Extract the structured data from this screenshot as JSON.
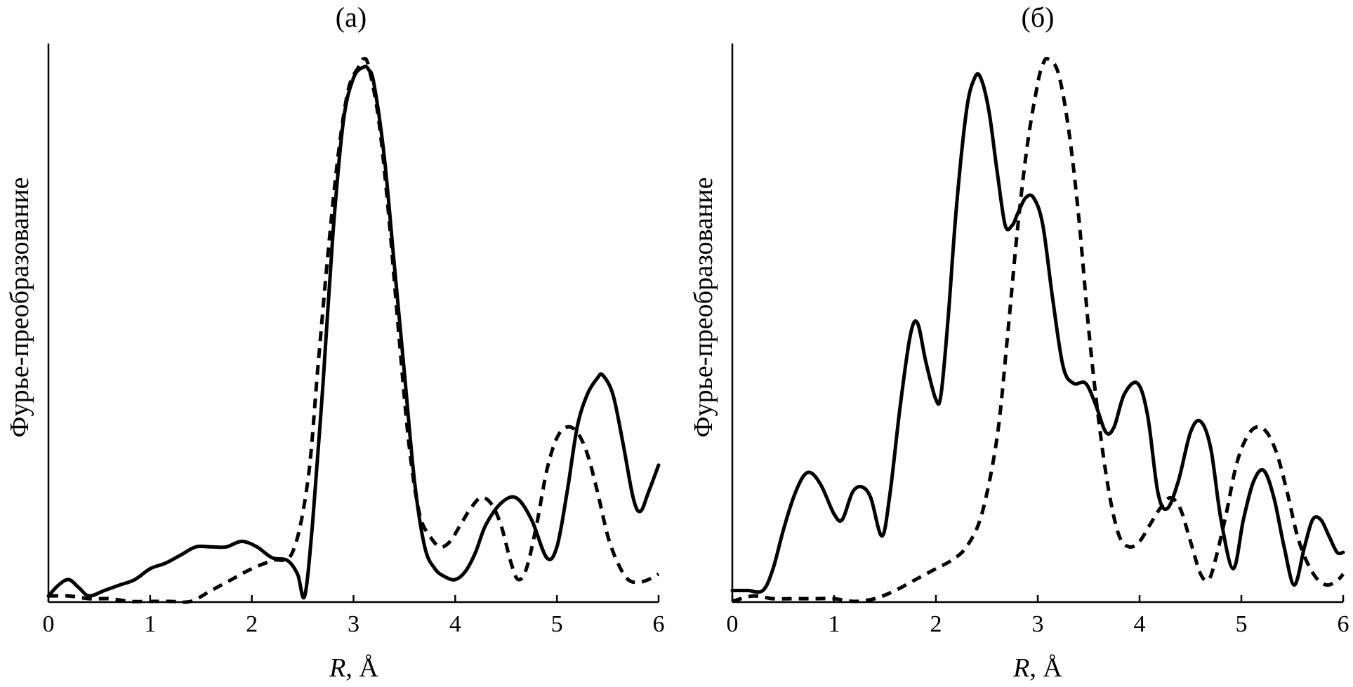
{
  "chart_data": [
    {
      "type": "line",
      "title": "(a)",
      "xlabel_italic": "R",
      "xlabel_rest": ", Å",
      "ylabel": "Фурье-преобразование",
      "xlim": [
        0,
        6
      ],
      "ylim": [
        0,
        1
      ],
      "xticks": [
        "0",
        "1",
        "2",
        "3",
        "4",
        "5",
        "6"
      ],
      "grid": false,
      "series": [
        {
          "style": "solid",
          "x": [
            0,
            0.1,
            0.2,
            0.3,
            0.4,
            0.55,
            0.7,
            0.85,
            1.0,
            1.15,
            1.3,
            1.45,
            1.6,
            1.75,
            1.9,
            2.05,
            2.2,
            2.35,
            2.45,
            2.52,
            2.6,
            2.7,
            2.8,
            2.9,
            3.0,
            3.1,
            3.15,
            3.2,
            3.3,
            3.4,
            3.5,
            3.6,
            3.7,
            3.8,
            3.9,
            4.0,
            4.1,
            4.2,
            4.3,
            4.45,
            4.6,
            4.75,
            4.9,
            5.0,
            5.1,
            5.2,
            5.3,
            5.4,
            5.45,
            5.55,
            5.65,
            5.75,
            5.82,
            5.9,
            6.0
          ],
          "y": [
            0.01,
            0.03,
            0.04,
            0.025,
            0.01,
            0.02,
            0.03,
            0.04,
            0.06,
            0.07,
            0.085,
            0.1,
            0.1,
            0.1,
            0.11,
            0.1,
            0.08,
            0.075,
            0.05,
            0.01,
            0.15,
            0.4,
            0.68,
            0.88,
            0.96,
            0.98,
            0.975,
            0.95,
            0.82,
            0.62,
            0.42,
            0.22,
            0.1,
            0.06,
            0.045,
            0.04,
            0.055,
            0.09,
            0.14,
            0.18,
            0.19,
            0.15,
            0.08,
            0.1,
            0.2,
            0.32,
            0.38,
            0.41,
            0.415,
            0.38,
            0.29,
            0.19,
            0.165,
            0.2,
            0.25
          ]
        },
        {
          "style": "dashed",
          "x": [
            0,
            0.2,
            0.4,
            0.6,
            0.8,
            1.0,
            1.2,
            1.4,
            1.6,
            1.8,
            2.0,
            2.2,
            2.4,
            2.55,
            2.65,
            2.75,
            2.85,
            2.95,
            3.05,
            3.1,
            3.15,
            3.25,
            3.35,
            3.45,
            3.55,
            3.65,
            3.75,
            3.85,
            3.95,
            4.05,
            4.15,
            4.25,
            4.35,
            4.45,
            4.55,
            4.62,
            4.7,
            4.8,
            4.9,
            5.0,
            5.1,
            5.2,
            5.3,
            5.4,
            5.5,
            5.6,
            5.7,
            5.8,
            5.9,
            6.0
          ],
          "y": [
            0.01,
            0.01,
            0.005,
            0.005,
            0.0,
            0.0,
            0.0,
            0.0,
            0.02,
            0.04,
            0.06,
            0.075,
            0.09,
            0.22,
            0.43,
            0.64,
            0.82,
            0.94,
            0.98,
            0.995,
            0.98,
            0.88,
            0.7,
            0.48,
            0.28,
            0.16,
            0.12,
            0.1,
            0.11,
            0.14,
            0.17,
            0.19,
            0.18,
            0.14,
            0.07,
            0.04,
            0.06,
            0.14,
            0.24,
            0.3,
            0.32,
            0.31,
            0.27,
            0.2,
            0.12,
            0.07,
            0.04,
            0.035,
            0.04,
            0.05
          ]
        }
      ]
    },
    {
      "type": "line",
      "title": "(б)",
      "xlabel_italic": "R",
      "xlabel_rest": ", Å",
      "ylabel": "Фурье-преобразование",
      "xlim": [
        0,
        6
      ],
      "ylim": [
        0,
        1
      ],
      "xticks": [
        "0",
        "1",
        "2",
        "3",
        "4",
        "5",
        "6"
      ],
      "grid": false,
      "series": [
        {
          "style": "solid",
          "x": [
            0,
            0.15,
            0.3,
            0.4,
            0.5,
            0.6,
            0.7,
            0.78,
            0.88,
            1.0,
            1.08,
            1.18,
            1.27,
            1.36,
            1.47,
            1.55,
            1.65,
            1.75,
            1.82,
            1.9,
            2.0,
            2.05,
            2.12,
            2.2,
            2.3,
            2.38,
            2.44,
            2.52,
            2.6,
            2.68,
            2.75,
            2.8,
            2.88,
            2.96,
            3.05,
            3.15,
            3.25,
            3.35,
            3.47,
            3.57,
            3.67,
            3.75,
            3.85,
            3.98,
            4.08,
            4.18,
            4.27,
            4.38,
            4.5,
            4.6,
            4.7,
            4.8,
            4.92,
            5.02,
            5.12,
            5.22,
            5.32,
            5.42,
            5.52,
            5.62,
            5.7,
            5.78,
            5.86,
            5.94,
            6.0
          ],
          "y": [
            0.02,
            0.02,
            0.02,
            0.06,
            0.13,
            0.19,
            0.23,
            0.235,
            0.21,
            0.16,
            0.15,
            0.2,
            0.21,
            0.19,
            0.12,
            0.2,
            0.36,
            0.49,
            0.51,
            0.44,
            0.37,
            0.38,
            0.52,
            0.72,
            0.9,
            0.96,
            0.96,
            0.9,
            0.79,
            0.69,
            0.69,
            0.71,
            0.74,
            0.74,
            0.69,
            0.55,
            0.43,
            0.4,
            0.4,
            0.36,
            0.31,
            0.32,
            0.38,
            0.4,
            0.34,
            0.2,
            0.17,
            0.22,
            0.31,
            0.33,
            0.28,
            0.15,
            0.06,
            0.15,
            0.22,
            0.24,
            0.19,
            0.1,
            0.03,
            0.1,
            0.15,
            0.15,
            0.12,
            0.09,
            0.09
          ]
        },
        {
          "style": "dashed",
          "x": [
            0,
            0.2,
            0.4,
            0.6,
            0.8,
            1.0,
            1.2,
            1.4,
            1.6,
            1.8,
            2.0,
            2.15,
            2.3,
            2.45,
            2.6,
            2.7,
            2.8,
            2.9,
            3.0,
            3.05,
            3.1,
            3.2,
            3.3,
            3.4,
            3.5,
            3.6,
            3.7,
            3.8,
            3.9,
            4.0,
            4.1,
            4.2,
            4.3,
            4.4,
            4.5,
            4.6,
            4.68,
            4.75,
            4.85,
            4.95,
            5.05,
            5.15,
            5.25,
            5.35,
            5.45,
            5.55,
            5.65,
            5.75,
            5.85,
            5.95,
            6.0
          ],
          "y": [
            0.0,
            0.01,
            0.005,
            0.005,
            0.005,
            0.005,
            0.0,
            0.005,
            0.02,
            0.04,
            0.06,
            0.075,
            0.1,
            0.16,
            0.3,
            0.48,
            0.68,
            0.84,
            0.95,
            0.985,
            0.995,
            0.97,
            0.87,
            0.71,
            0.5,
            0.33,
            0.2,
            0.12,
            0.1,
            0.11,
            0.14,
            0.17,
            0.19,
            0.17,
            0.11,
            0.05,
            0.04,
            0.08,
            0.16,
            0.25,
            0.3,
            0.32,
            0.31,
            0.27,
            0.2,
            0.12,
            0.07,
            0.04,
            0.03,
            0.04,
            0.05
          ]
        }
      ]
    }
  ]
}
